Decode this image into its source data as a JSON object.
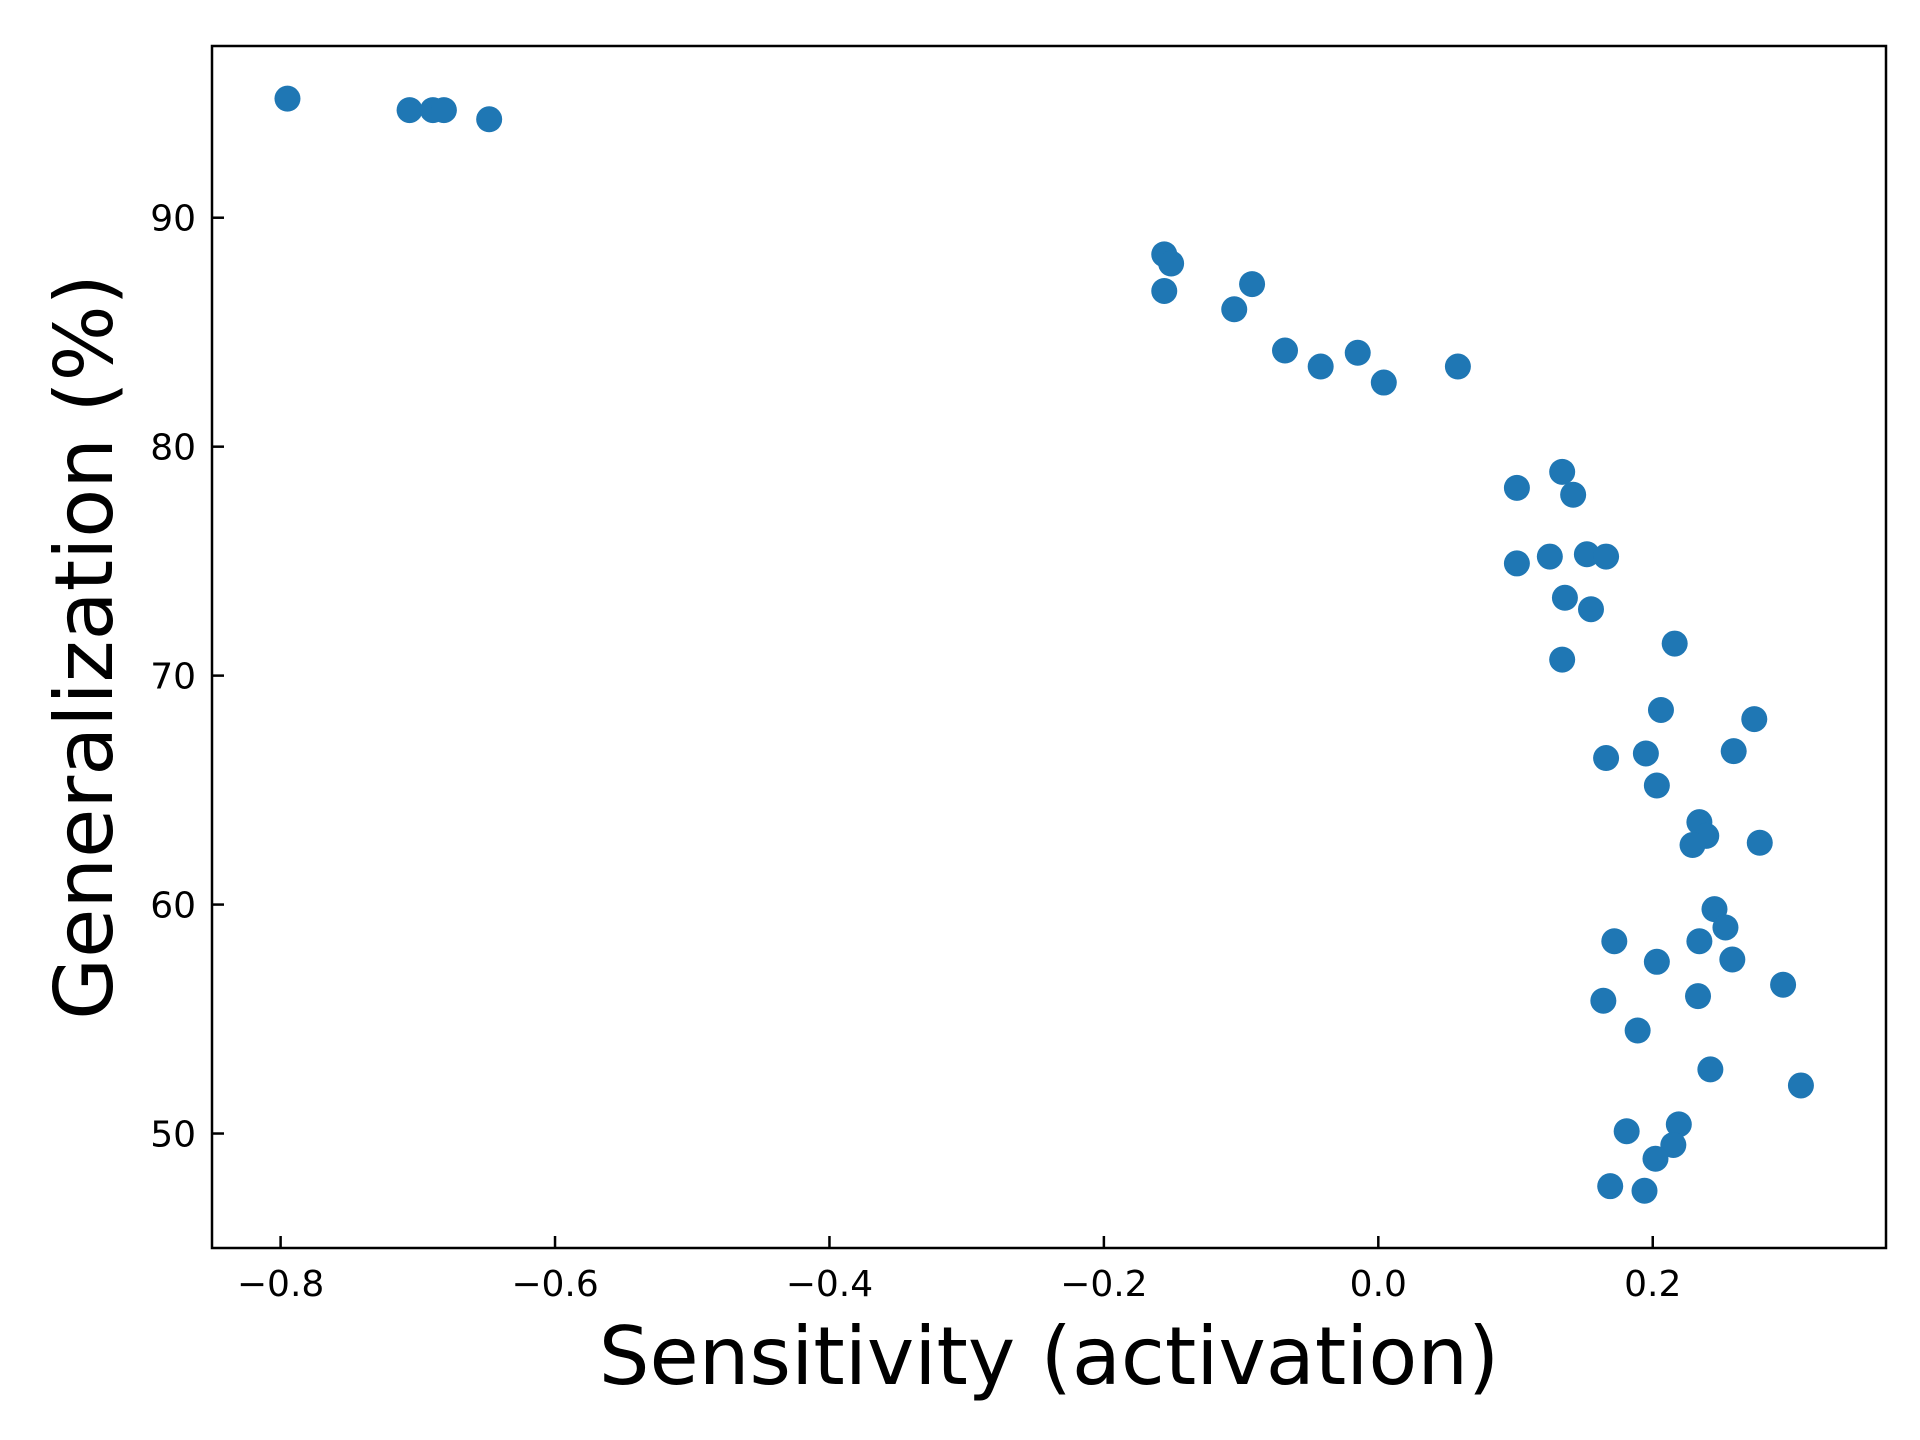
{
  "chart_data": {
    "type": "scatter",
    "title": "",
    "xlabel": "Sensitivity (activation)",
    "ylabel": "Generalization (%)",
    "xlim": [
      -0.85,
      0.37
    ],
    "ylim": [
      45,
      97.5
    ],
    "xticks": [
      -0.8,
      -0.6,
      -0.4,
      -0.2,
      0.0,
      0.2
    ],
    "xtick_labels": [
      "−0.8",
      "−0.6",
      "−0.4",
      "−0.2",
      "0.0",
      "0.2"
    ],
    "yticks": [
      50,
      60,
      70,
      80,
      90
    ],
    "ytick_labels": [
      "50",
      "60",
      "70",
      "80",
      "90"
    ],
    "grid": false,
    "legend": "none",
    "series": [
      {
        "color": "#1f77b4",
        "points": [
          [
            -0.795,
            95.2
          ],
          [
            -0.706,
            94.7
          ],
          [
            -0.689,
            94.7
          ],
          [
            -0.681,
            94.7
          ],
          [
            -0.648,
            94.3
          ],
          [
            -0.156,
            88.4
          ],
          [
            -0.151,
            88.0
          ],
          [
            -0.156,
            86.8
          ],
          [
            -0.092,
            87.1
          ],
          [
            -0.105,
            86.0
          ],
          [
            -0.068,
            84.2
          ],
          [
            -0.042,
            83.5
          ],
          [
            -0.015,
            84.1
          ],
          [
            0.004,
            82.8
          ],
          [
            0.058,
            83.5
          ],
          [
            0.101,
            78.2
          ],
          [
            0.134,
            78.9
          ],
          [
            0.142,
            77.9
          ],
          [
            0.101,
            74.9
          ],
          [
            0.125,
            75.2
          ],
          [
            0.152,
            75.3
          ],
          [
            0.166,
            75.2
          ],
          [
            0.136,
            73.4
          ],
          [
            0.155,
            72.9
          ],
          [
            0.134,
            70.7
          ],
          [
            0.216,
            71.4
          ],
          [
            0.206,
            68.5
          ],
          [
            0.274,
            68.1
          ],
          [
            0.166,
            66.4
          ],
          [
            0.195,
            66.6
          ],
          [
            0.259,
            66.7
          ],
          [
            0.203,
            65.2
          ],
          [
            0.234,
            63.6
          ],
          [
            0.239,
            63.0
          ],
          [
            0.229,
            62.6
          ],
          [
            0.278,
            62.7
          ],
          [
            0.245,
            59.8
          ],
          [
            0.253,
            59.0
          ],
          [
            0.172,
            58.4
          ],
          [
            0.234,
            58.4
          ],
          [
            0.258,
            57.6
          ],
          [
            0.203,
            57.5
          ],
          [
            0.295,
            56.5
          ],
          [
            0.164,
            55.8
          ],
          [
            0.233,
            56.0
          ],
          [
            0.189,
            54.5
          ],
          [
            0.242,
            52.8
          ],
          [
            0.308,
            52.1
          ],
          [
            0.181,
            50.1
          ],
          [
            0.219,
            50.4
          ],
          [
            0.215,
            49.5
          ],
          [
            0.202,
            48.9
          ],
          [
            0.169,
            47.7
          ],
          [
            0.194,
            47.5
          ]
        ]
      }
    ]
  }
}
